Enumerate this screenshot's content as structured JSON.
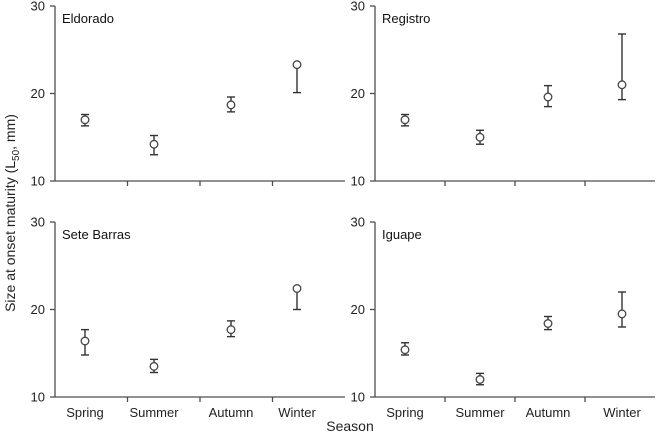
{
  "chart_data": {
    "type": "scatter",
    "ylabel_main": "Size at onset maturity (L",
    "ylabel_sub": "50",
    "ylabel_tail": ", mm)",
    "xlabel": "Season",
    "categories": [
      "Spring",
      "Summer",
      "Autumn",
      "Winter"
    ],
    "ylim": [
      10,
      30
    ],
    "yticks": [
      "10",
      "20",
      "30"
    ],
    "grid": false,
    "panels": [
      {
        "title": "Eldorado",
        "points": [
          {
            "category": "Spring",
            "value": 17.0,
            "lower": 16.3,
            "upper": 17.6
          },
          {
            "category": "Summer",
            "value": 14.2,
            "lower": 13.0,
            "upper": 15.2
          },
          {
            "category": "Autumn",
            "value": 18.7,
            "lower": 17.9,
            "upper": 19.6
          },
          {
            "category": "Winter",
            "value": 23.3,
            "lower": 20.1,
            "upper": 23.3
          }
        ]
      },
      {
        "title": "Registro",
        "points": [
          {
            "category": "Spring",
            "value": 17.0,
            "lower": 16.3,
            "upper": 17.6
          },
          {
            "category": "Summer",
            "value": 15.0,
            "lower": 14.2,
            "upper": 15.8
          },
          {
            "category": "Autumn",
            "value": 19.6,
            "lower": 18.5,
            "upper": 20.9
          },
          {
            "category": "Winter",
            "value": 21.0,
            "lower": 19.3,
            "upper": 26.8
          }
        ]
      },
      {
        "title": "Sete Barras",
        "points": [
          {
            "category": "Spring",
            "value": 16.4,
            "lower": 14.8,
            "upper": 17.7
          },
          {
            "category": "Summer",
            "value": 13.5,
            "lower": 12.8,
            "upper": 14.3
          },
          {
            "category": "Autumn",
            "value": 17.7,
            "lower": 16.9,
            "upper": 18.7
          },
          {
            "category": "Winter",
            "value": 22.4,
            "lower": 20.0,
            "upper": 22.4
          }
        ]
      },
      {
        "title": "Iguape",
        "points": [
          {
            "category": "Spring",
            "value": 15.4,
            "lower": 14.8,
            "upper": 16.2
          },
          {
            "category": "Summer",
            "value": 12.0,
            "lower": 11.4,
            "upper": 12.7
          },
          {
            "category": "Autumn",
            "value": 18.4,
            "lower": 17.7,
            "upper": 19.2
          },
          {
            "category": "Winter",
            "value": 19.5,
            "lower": 18.0,
            "upper": 22.0
          }
        ]
      }
    ]
  }
}
